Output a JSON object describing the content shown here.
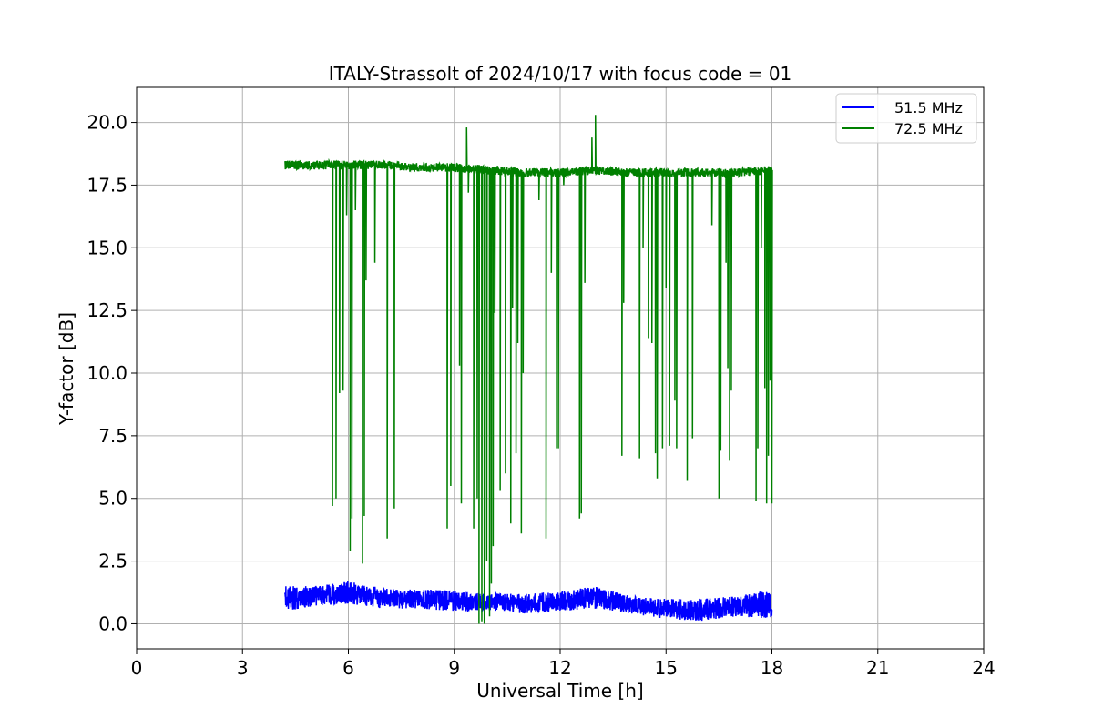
{
  "chart_data": {
    "type": "line",
    "title": "ITALY-Strassolt of 2024/10/17 with focus code = 01",
    "xlabel": "Universal Time [h]",
    "ylabel": "Y-factor [dB]",
    "xlim": [
      0,
      24
    ],
    "ylim": [
      -1.0,
      21.4
    ],
    "x_ticks": [
      0,
      3,
      6,
      9,
      12,
      15,
      18,
      21,
      24
    ],
    "x_tick_labels": [
      "0",
      "3",
      "6",
      "9",
      "12",
      "15",
      "18",
      "21",
      "24"
    ],
    "y_ticks": [
      0.0,
      2.5,
      5.0,
      7.5,
      10.0,
      12.5,
      15.0,
      17.5,
      20.0
    ],
    "y_tick_labels": [
      "0.0",
      "2.5",
      "5.0",
      "7.5",
      "10.0",
      "12.5",
      "15.0",
      "17.5",
      "20.0"
    ],
    "grid": true,
    "legend_position": "top-right",
    "series": [
      {
        "name": "51.5 MHz",
        "color": "#0000ff",
        "x_range": [
          4.2,
          18.0
        ],
        "noise_band": [
          {
            "x": 4.2,
            "low": 0.5,
            "high": 1.5
          },
          {
            "x": 5.0,
            "low": 0.7,
            "high": 1.5
          },
          {
            "x": 6.0,
            "low": 0.8,
            "high": 1.7
          },
          {
            "x": 7.0,
            "low": 0.6,
            "high": 1.4
          },
          {
            "x": 8.0,
            "low": 0.6,
            "high": 1.4
          },
          {
            "x": 9.0,
            "low": 0.5,
            "high": 1.3
          },
          {
            "x": 10.0,
            "low": 0.5,
            "high": 1.2
          },
          {
            "x": 11.0,
            "low": 0.4,
            "high": 1.2
          },
          {
            "x": 12.0,
            "low": 0.5,
            "high": 1.3
          },
          {
            "x": 13.0,
            "low": 0.6,
            "high": 1.5
          },
          {
            "x": 14.0,
            "low": 0.4,
            "high": 1.1
          },
          {
            "x": 15.0,
            "low": 0.2,
            "high": 1.0
          },
          {
            "x": 16.0,
            "low": 0.1,
            "high": 1.0
          },
          {
            "x": 17.0,
            "low": 0.3,
            "high": 1.1
          },
          {
            "x": 18.0,
            "low": 0.2,
            "high": 1.4
          }
        ]
      },
      {
        "name": "72.5 MHz",
        "color": "#008000",
        "x_range": [
          4.2,
          18.0
        ],
        "baseline": [
          {
            "x": 4.2,
            "y": 18.3
          },
          {
            "x": 6.0,
            "y": 18.3
          },
          {
            "x": 7.0,
            "y": 18.3
          },
          {
            "x": 8.0,
            "y": 18.2
          },
          {
            "x": 9.0,
            "y": 18.2
          },
          {
            "x": 10.0,
            "y": 18.1
          },
          {
            "x": 11.0,
            "y": 18.0
          },
          {
            "x": 12.0,
            "y": 18.0
          },
          {
            "x": 13.0,
            "y": 18.1
          },
          {
            "x": 14.0,
            "y": 18.0
          },
          {
            "x": 15.0,
            "y": 18.0
          },
          {
            "x": 16.0,
            "y": 18.0
          },
          {
            "x": 17.0,
            "y": 18.0
          },
          {
            "x": 18.0,
            "y": 18.1
          }
        ],
        "spikes": [
          {
            "x": 9.35,
            "y": 19.8
          },
          {
            "x": 12.9,
            "y": 19.4
          },
          {
            "x": 13.0,
            "y": 20.3
          }
        ],
        "dips": [
          {
            "x": 5.55,
            "y": 4.7
          },
          {
            "x": 5.65,
            "y": 5.0
          },
          {
            "x": 5.75,
            "y": 9.2
          },
          {
            "x": 5.85,
            "y": 9.3
          },
          {
            "x": 5.95,
            "y": 16.3
          },
          {
            "x": 6.05,
            "y": 2.9
          },
          {
            "x": 6.1,
            "y": 4.2
          },
          {
            "x": 6.2,
            "y": 16.5
          },
          {
            "x": 6.4,
            "y": 2.4
          },
          {
            "x": 6.45,
            "y": 4.3
          },
          {
            "x": 6.5,
            "y": 13.7
          },
          {
            "x": 6.75,
            "y": 14.4
          },
          {
            "x": 7.1,
            "y": 3.4
          },
          {
            "x": 7.3,
            "y": 4.6
          },
          {
            "x": 8.8,
            "y": 3.8
          },
          {
            "x": 8.9,
            "y": 5.5
          },
          {
            "x": 9.15,
            "y": 10.3
          },
          {
            "x": 9.2,
            "y": 4.8
          },
          {
            "x": 9.4,
            "y": 17.2
          },
          {
            "x": 9.55,
            "y": 3.8
          },
          {
            "x": 9.65,
            "y": 5.0
          },
          {
            "x": 9.7,
            "y": 0.0
          },
          {
            "x": 9.78,
            "y": 0.1
          },
          {
            "x": 9.85,
            "y": 0.0
          },
          {
            "x": 9.92,
            "y": 2.5
          },
          {
            "x": 10.0,
            "y": 0.3
          },
          {
            "x": 10.05,
            "y": 1.6
          },
          {
            "x": 10.1,
            "y": 3.1
          },
          {
            "x": 10.15,
            "y": 12.4
          },
          {
            "x": 10.3,
            "y": 5.3
          },
          {
            "x": 10.45,
            "y": 6.0
          },
          {
            "x": 10.6,
            "y": 4.0
          },
          {
            "x": 10.65,
            "y": 12.6
          },
          {
            "x": 10.75,
            "y": 6.8
          },
          {
            "x": 10.8,
            "y": 11.2
          },
          {
            "x": 10.9,
            "y": 3.6
          },
          {
            "x": 10.95,
            "y": 10.0
          },
          {
            "x": 11.4,
            "y": 16.9
          },
          {
            "x": 11.6,
            "y": 3.4
          },
          {
            "x": 11.75,
            "y": 14.0
          },
          {
            "x": 11.9,
            "y": 7.0
          },
          {
            "x": 11.95,
            "y": 7.0
          },
          {
            "x": 12.1,
            "y": 17.5
          },
          {
            "x": 12.55,
            "y": 4.2
          },
          {
            "x": 12.6,
            "y": 4.4
          },
          {
            "x": 12.7,
            "y": 13.6
          },
          {
            "x": 13.75,
            "y": 6.7
          },
          {
            "x": 13.8,
            "y": 12.8
          },
          {
            "x": 14.25,
            "y": 6.6
          },
          {
            "x": 14.35,
            "y": 15.0
          },
          {
            "x": 14.5,
            "y": 11.4
          },
          {
            "x": 14.6,
            "y": 11.2
          },
          {
            "x": 14.7,
            "y": 6.8
          },
          {
            "x": 14.75,
            "y": 5.8
          },
          {
            "x": 14.9,
            "y": 7.0
          },
          {
            "x": 15.0,
            "y": 13.4
          },
          {
            "x": 15.1,
            "y": 7.1
          },
          {
            "x": 15.25,
            "y": 8.9
          },
          {
            "x": 15.3,
            "y": 7.0
          },
          {
            "x": 15.6,
            "y": 5.7
          },
          {
            "x": 15.75,
            "y": 7.4
          },
          {
            "x": 16.3,
            "y": 15.9
          },
          {
            "x": 16.5,
            "y": 5.0
          },
          {
            "x": 16.55,
            "y": 6.9
          },
          {
            "x": 16.7,
            "y": 14.4
          },
          {
            "x": 16.75,
            "y": 10.2
          },
          {
            "x": 16.8,
            "y": 6.5
          },
          {
            "x": 16.85,
            "y": 9.3
          },
          {
            "x": 17.55,
            "y": 4.9
          },
          {
            "x": 17.6,
            "y": 7.0
          },
          {
            "x": 17.7,
            "y": 15.0
          },
          {
            "x": 17.8,
            "y": 9.4
          },
          {
            "x": 17.85,
            "y": 4.8
          },
          {
            "x": 17.9,
            "y": 6.7
          },
          {
            "x": 17.95,
            "y": 9.7
          },
          {
            "x": 18.0,
            "y": 4.8
          }
        ]
      }
    ]
  }
}
